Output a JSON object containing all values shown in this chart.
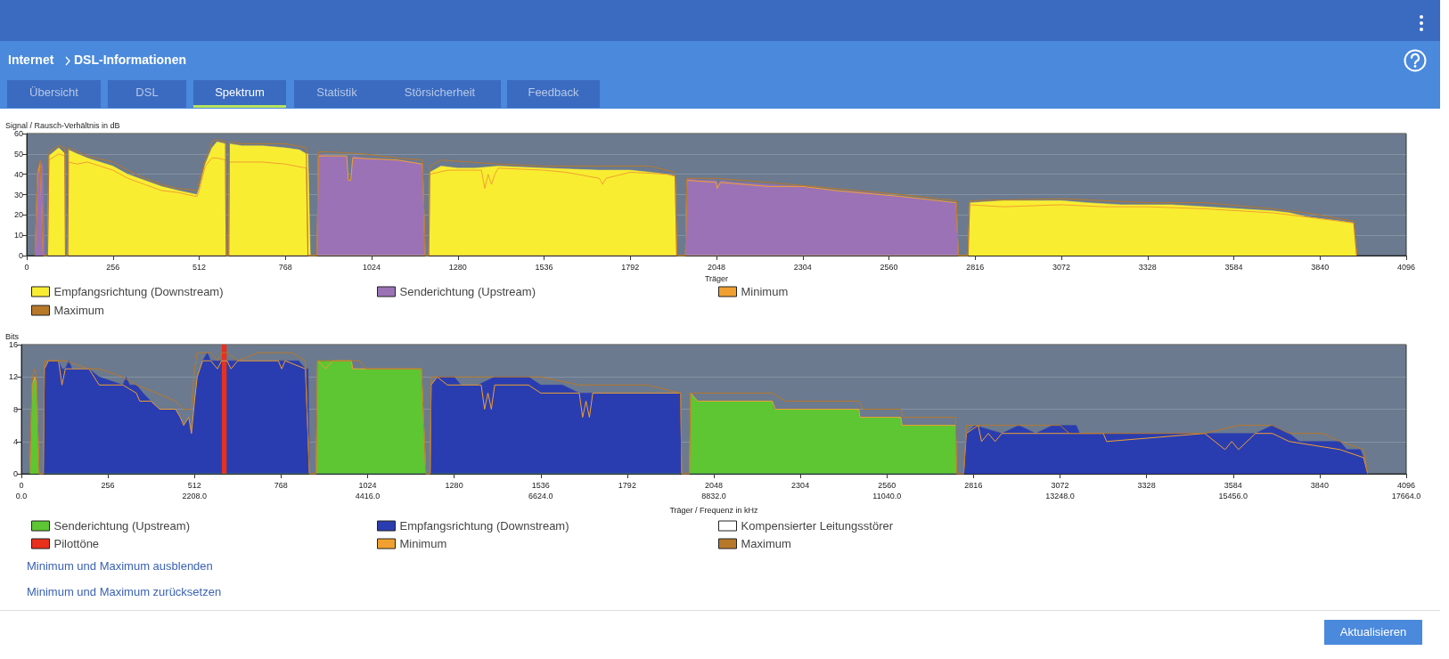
{
  "chart_data": [
    {
      "type": "area",
      "ylabel": "Signal / Rausch-Verhältnis in dB",
      "xlabel": "Träger",
      "xlim": [
        0,
        4096
      ],
      "xticks": [
        0,
        256,
        512,
        768,
        1024,
        1280,
        1536,
        1792,
        2048,
        2304,
        2560,
        2816,
        3072,
        3328,
        3584,
        3840,
        4096
      ],
      "ylim": [
        0,
        60
      ],
      "yticks": [
        0,
        10,
        20,
        30,
        40,
        50,
        60
      ],
      "grid": "y",
      "legend": "bottom",
      "annotations": [
        "Internet",
        "DSL-Informationen",
        "Übersicht",
        "DSL",
        "Spektrum",
        "Statistik",
        "Störsicherheit",
        "Feedback"
      ],
      "series": [
        {
          "name": "Empfangsrichtung (Downstream)",
          "color": "#f9ed32",
          "x": [
            62,
            66,
            80,
            95,
            108,
            113,
            115,
            122,
            124,
            150,
            180,
            256,
            300,
            350,
            400,
            450,
            505,
            512,
            530,
            550,
            565,
            590,
            592,
            600,
            602,
            640,
            700,
            768,
            810,
            830,
            835,
            842,
            1194,
            1197,
            1230,
            1280,
            1330,
            1400,
            1536,
            1700,
            1792,
            1850,
            1900,
            1925,
            1930,
            2795,
            2800,
            2900,
            3000,
            3072,
            3150,
            3250,
            3328,
            3400,
            3500,
            3600,
            3700,
            3750,
            3800,
            3900,
            3940,
            3949
          ],
          "values": [
            0,
            49,
            51,
            53,
            51,
            50,
            0,
            0,
            52,
            50,
            48,
            44,
            40,
            37,
            34,
            32,
            30,
            33,
            45,
            53,
            56,
            55,
            0,
            0,
            55,
            54,
            54,
            53,
            52,
            50,
            50,
            0,
            0,
            41,
            44,
            43,
            43,
            44,
            43,
            42,
            42,
            41,
            40,
            39,
            0,
            0,
            26,
            27,
            27,
            27,
            26,
            25,
            25,
            25,
            24,
            23,
            22,
            21,
            19,
            17,
            16,
            0
          ]
        },
        {
          "name": "Senderichtung (Upstream)",
          "color": "#9b72b6",
          "x": [
            24,
            32,
            40,
            48,
            53,
            862,
            866,
            900,
            950,
            955,
            962,
            968,
            1000,
            1100,
            1150,
            1175,
            1183,
            1956,
            1960,
            2000,
            2048,
            2050,
            2060,
            2100,
            2200,
            2304,
            2400,
            2500,
            2600,
            2700,
            2760,
            2766
          ],
          "values": [
            0,
            40,
            47,
            44,
            0,
            0,
            50,
            49,
            49,
            37,
            37,
            49,
            48,
            47,
            46,
            45,
            0,
            0,
            38,
            37,
            37,
            34,
            37,
            36,
            35,
            34,
            32,
            31,
            29,
            27,
            26,
            0
          ]
        },
        {
          "name": "Minimum",
          "type": "line",
          "color": "#f0a030",
          "x": [
            25,
            32,
            40,
            49,
            62,
            66,
            95,
            113,
            115,
            122,
            124,
            150,
            180,
            256,
            300,
            350,
            400,
            450,
            505,
            512,
            530,
            550,
            565,
            590,
            592,
            600,
            602,
            700,
            768,
            830,
            835,
            862,
            866,
            950,
            955,
            962,
            968,
            1100,
            1175,
            1183,
            1194,
            1197,
            1250,
            1350,
            1360,
            1370,
            1380,
            1390,
            1400,
            1536,
            1600,
            1700,
            1710,
            1720,
            1792,
            1900,
            1925,
            1930,
            1956,
            1960,
            2048,
            2050,
            2060,
            2200,
            2304,
            2400,
            2600,
            2760,
            2766,
            2795,
            2800,
            2900,
            3072,
            3200,
            3328,
            3500,
            3600,
            3700,
            3800,
            3940,
            3949
          ],
          "values": [
            0,
            40,
            45,
            0,
            0,
            47,
            50,
            49,
            0,
            0,
            46,
            45,
            46,
            42,
            38,
            35,
            32,
            31,
            29,
            32,
            44,
            48,
            48,
            47,
            0,
            0,
            46,
            46,
            45,
            43,
            0,
            0,
            49,
            49,
            37,
            37,
            48,
            47,
            45,
            0,
            0,
            40,
            42,
            42,
            33,
            40,
            35,
            40,
            43,
            42,
            41,
            38,
            35,
            38,
            41,
            40,
            39,
            0,
            0,
            37,
            36,
            33,
            36,
            34,
            34,
            32,
            29,
            26,
            0,
            0,
            25,
            24,
            25,
            24,
            24,
            23,
            22,
            21,
            19,
            16,
            0
          ]
        },
        {
          "name": "Maximum",
          "type": "line",
          "color": "#b8782a",
          "x": [
            25,
            32,
            40,
            49,
            62,
            66,
            95,
            113,
            115,
            122,
            124,
            180,
            256,
            300,
            350,
            400,
            450,
            505,
            530,
            550,
            565,
            590,
            592,
            600,
            602,
            640,
            768,
            830,
            835,
            862,
            866,
            900,
            1000,
            1100,
            1175,
            1183,
            1194,
            1197,
            1230,
            1400,
            1536,
            1700,
            1850,
            1925,
            1930,
            1956,
            1960,
            2048,
            2200,
            2400,
            2600,
            2760,
            2766,
            2795,
            2800,
            3072,
            3328,
            3500,
            3700,
            3800,
            3940,
            3949
          ],
          "values": [
            0,
            42,
            47,
            0,
            0,
            51,
            54,
            53,
            0,
            0,
            53,
            49,
            46,
            42,
            38,
            35,
            33,
            32,
            47,
            56,
            57,
            56,
            0,
            0,
            56,
            55,
            55,
            53,
            0,
            0,
            51,
            51,
            50,
            48,
            47,
            0,
            0,
            44,
            47,
            45,
            44,
            44,
            44,
            41,
            0,
            0,
            38,
            38,
            36,
            33,
            30,
            27,
            0,
            0,
            27,
            28,
            26,
            26,
            23,
            21,
            17,
            0
          ]
        }
      ]
    },
    {
      "type": "area",
      "ylabel": "Bits",
      "xlabel": "Träger / Frequenz in kHz",
      "xlim": [
        0,
        4096
      ],
      "xticks": [
        0,
        256,
        512,
        768,
        1024,
        1280,
        1536,
        1792,
        2048,
        2304,
        2560,
        2816,
        3072,
        3328,
        3584,
        3840,
        4096
      ],
      "x2lim": [
        0,
        17664
      ],
      "x2ticks": [
        {
          "value": 0,
          "label": "0.0"
        },
        {
          "value": 2208,
          "label": "2208.0"
        },
        {
          "value": 4416,
          "label": "4416.0"
        },
        {
          "value": 6624,
          "label": "6624.0"
        },
        {
          "value": 8832,
          "label": "8832.0"
        },
        {
          "value": 11040,
          "label": "11040.0"
        },
        {
          "value": 13248,
          "label": "13248.0"
        },
        {
          "value": 15456,
          "label": "15456.0"
        },
        {
          "value": 17664,
          "label": "17664.0"
        }
      ],
      "ylim": [
        0,
        16
      ],
      "yticks": [
        0,
        4,
        8,
        12,
        16
      ],
      "grid": "y",
      "legend": "bottom",
      "annotations": [
        "Minimum und Maximum ausblenden",
        "Minimum und Maximum zurücksetzen",
        "Aktualisieren"
      ],
      "series": [
        {
          "name": "Senderichtung (Upstream)",
          "color": "#5dc632",
          "x": [
            25,
            32,
            40,
            45,
            52,
            872,
            876,
            976,
            980,
            1183,
            1196,
            1976,
            1980,
            2000,
            2221,
            2225,
            2477,
            2480,
            2601,
            2605,
            2763,
            2766
          ],
          "values": [
            0,
            11,
            12,
            11,
            0,
            0,
            14,
            14,
            13,
            13,
            0,
            0,
            10,
            9,
            9,
            8,
            8,
            7,
            7,
            6,
            6,
            0
          ]
        },
        {
          "name": "Empfangsrichtung (Downstream)",
          "color": "#2a3db0",
          "x": [
            65,
            68,
            80,
            110,
            120,
            130,
            140,
            150,
            200,
            230,
            300,
            310,
            320,
            340,
            360,
            383,
            409,
            456,
            470,
            480,
            495,
            503,
            512,
            520,
            536,
            550,
            560,
            580,
            592,
            608,
            640,
            700,
            768,
            820,
            840,
            848,
            852,
            1209,
            1212,
            1230,
            1280,
            1300,
            1350,
            1400,
            1500,
            1536,
            1600,
            1650,
            1700,
            1800,
            1950,
            1953,
            2787,
            2795,
            2820,
            2900,
            2950,
            3000,
            3050,
            3120,
            3130,
            3500,
            3650,
            3700,
            3750,
            3780,
            3900,
            3920,
            3960,
            3970,
            3982
          ],
          "values": [
            0,
            13,
            14,
            14,
            13,
            13,
            14,
            13,
            13,
            12,
            11,
            12,
            11,
            11,
            10,
            9,
            8,
            8,
            7,
            6,
            7,
            5,
            9,
            12,
            14,
            15,
            14,
            14,
            14,
            14,
            14,
            14,
            14,
            14,
            13,
            13,
            0,
            0,
            11,
            12,
            12,
            11,
            11,
            12,
            12,
            11,
            11,
            10,
            10,
            10,
            10,
            0,
            0,
            5,
            6,
            5,
            6,
            5,
            6,
            6,
            5,
            5,
            5,
            6,
            5,
            4,
            4,
            3,
            3,
            2,
            0
          ]
        },
        {
          "name": "Kompensierter Leitungsstörer",
          "color": "#ffffff"
        },
        {
          "name": "Pilottöne",
          "color": "#e8301c",
          "x": [
            593,
            607
          ],
          "values": [
            16,
            16
          ]
        },
        {
          "name": "Minimum",
          "type": "line",
          "color": "#f0a030",
          "x": [
            25,
            32,
            40,
            45,
            52,
            65,
            68,
            80,
            110,
            120,
            130,
            200,
            230,
            300,
            340,
            350,
            383,
            409,
            456,
            470,
            480,
            495,
            503,
            512,
            520,
            536,
            560,
            580,
            592,
            608,
            620,
            640,
            760,
            770,
            780,
            840,
            852,
            872,
            876,
            900,
            920,
            976,
            980,
            1183,
            1196,
            1209,
            1212,
            1230,
            1260,
            1300,
            1360,
            1370,
            1380,
            1390,
            1400,
            1450,
            1500,
            1536,
            1650,
            1660,
            1670,
            1680,
            1690,
            1950,
            1953,
            1976,
            1980,
            2000,
            2221,
            2230,
            2477,
            2480,
            2601,
            2605,
            2763,
            2766,
            2787,
            2795,
            2830,
            2840,
            2860,
            2880,
            2900,
            3000,
            3200,
            3210,
            3500,
            3560,
            3580,
            3600,
            3650,
            3700,
            3750,
            3900,
            3970,
            3982
          ],
          "values": [
            0,
            11,
            12,
            11,
            0,
            0,
            13,
            14,
            14,
            11,
            13,
            13,
            11,
            11,
            10,
            9,
            9,
            8,
            8,
            7,
            6,
            7,
            5,
            9,
            12,
            14,
            14,
            13,
            14,
            14,
            13,
            14,
            14,
            13,
            14,
            13,
            0,
            0,
            14,
            13,
            14,
            14,
            13,
            13,
            0,
            0,
            11,
            12,
            11,
            11,
            11,
            8,
            10,
            8,
            11,
            11,
            11,
            10,
            10,
            7,
            9,
            7,
            10,
            10,
            0,
            0,
            10,
            9,
            9,
            8,
            8,
            7,
            7,
            6,
            6,
            0,
            0,
            5,
            6,
            4,
            5,
            4,
            5,
            5,
            5,
            4,
            5,
            3,
            4,
            3,
            5,
            5,
            4,
            3,
            2,
            0
          ]
        },
        {
          "name": "Maximum",
          "type": "line",
          "color": "#b8782a",
          "x": [
            25,
            32,
            40,
            45,
            52,
            65,
            68,
            110,
            130,
            200,
            230,
            300,
            340,
            400,
            456,
            480,
            503,
            512,
            520,
            536,
            560,
            580,
            592,
            608,
            640,
            700,
            760,
            800,
            840,
            852,
            872,
            876,
            1000,
            1020,
            1183,
            1196,
            1209,
            1212,
            1300,
            1400,
            1450,
            1536,
            1650,
            1850,
            1950,
            1953,
            1976,
            1980,
            2048,
            2221,
            2260,
            2477,
            2490,
            2601,
            2610,
            2763,
            2766,
            2787,
            2795,
            3050,
            3072,
            3100,
            3500,
            3600,
            3700,
            3750,
            3850,
            3900,
            3970,
            3982
          ],
          "values": [
            0,
            12,
            13,
            12,
            0,
            0,
            14,
            14,
            14,
            13,
            13,
            12,
            11,
            10,
            9,
            8,
            8,
            13,
            15,
            15,
            15,
            14,
            15,
            15,
            14,
            15,
            15,
            15,
            14,
            0,
            0,
            14,
            14,
            13,
            13,
            0,
            0,
            12,
            12,
            12,
            12,
            12,
            11,
            11,
            10,
            0,
            0,
            10,
            10,
            10,
            9,
            9,
            8,
            8,
            7,
            7,
            0,
            0,
            6,
            6,
            6,
            5,
            5,
            6,
            6,
            5,
            5,
            4,
            3,
            0
          ]
        }
      ]
    }
  ]
}
